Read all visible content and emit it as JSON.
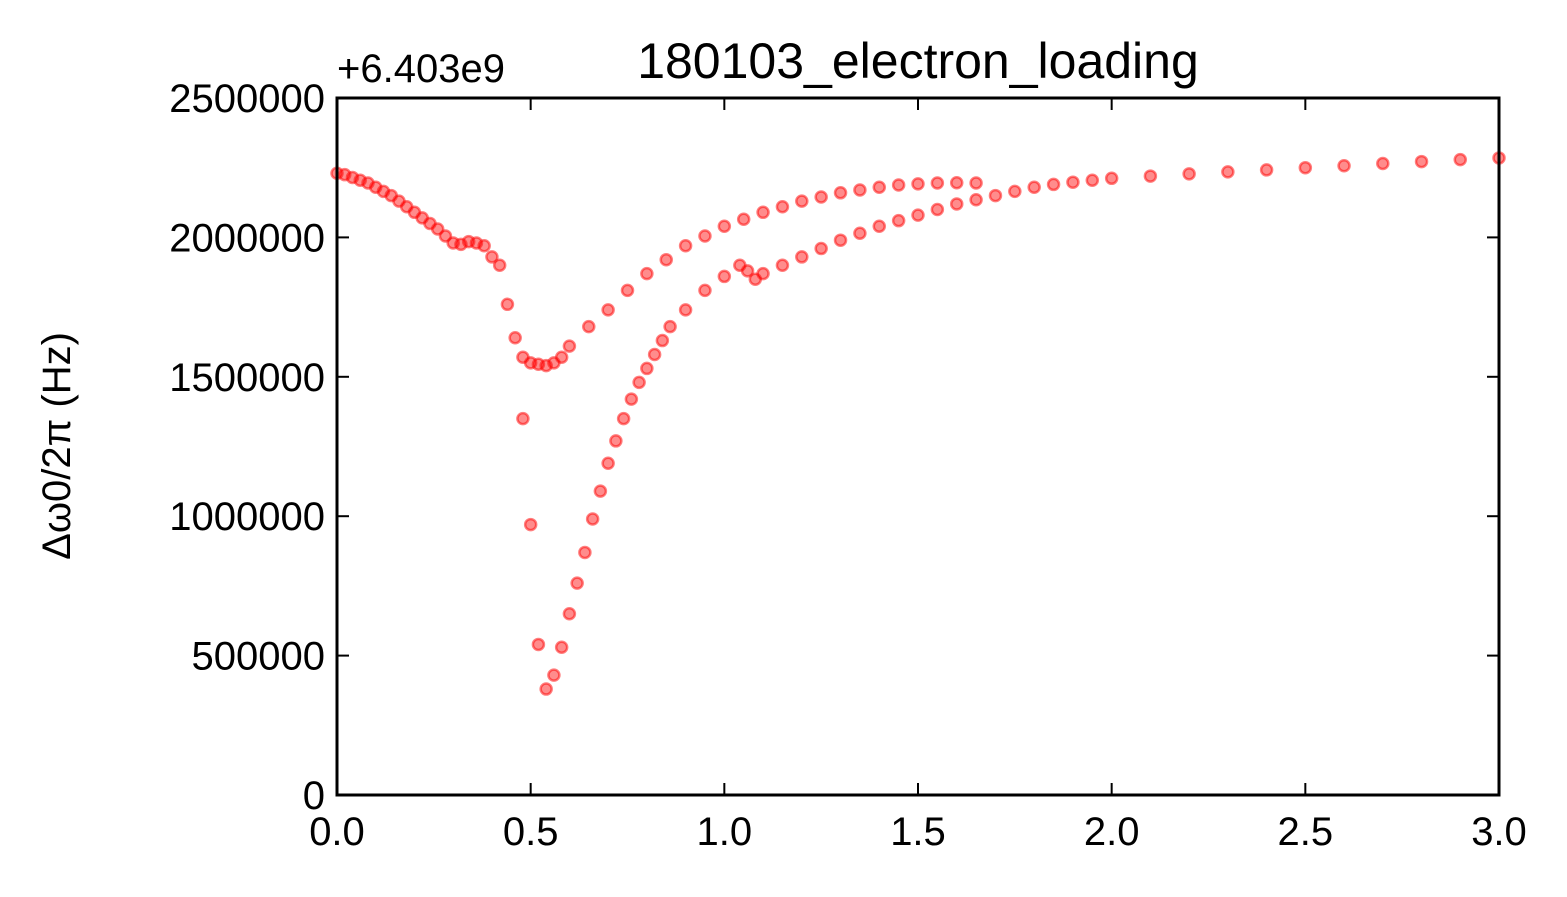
{
  "chart_data": {
    "type": "scatter",
    "title": "180103_electron_loading",
    "y_offset_label": "+6.403e9",
    "ylabel": "Δω0/2π (Hz)",
    "color": "#ff0000",
    "xlim": [
      0,
      3
    ],
    "ylim": [
      0,
      2500000
    ],
    "xticks": [
      {
        "value": 0,
        "label": "0.0"
      },
      0.5,
      {
        "value": 1,
        "label": "1.0"
      },
      1.5,
      {
        "value": 2,
        "label": "2.0"
      },
      2.5,
      {
        "value": 3,
        "label": "3.0"
      }
    ],
    "yticks": [
      0,
      500000,
      1000000,
      1500000,
      2000000,
      2500000
    ],
    "x": [
      0,
      0.02,
      0.04,
      0.06,
      0.08,
      0.1,
      0.12,
      0.14,
      0.16,
      0.18,
      0.2,
      0.22,
      0.24,
      0.26,
      0.28,
      0.3,
      0.32,
      0.34,
      0.36,
      0.38,
      0.4,
      0.42,
      0.44,
      0.46,
      0.48,
      0.5,
      0.52,
      0.54,
      0.56,
      0.58,
      0.6,
      0.65,
      0.7,
      0.75,
      0.8,
      0.85,
      0.9,
      0.95,
      1.0,
      1.05,
      1.1,
      1.15,
      1.2,
      1.25,
      1.3,
      1.35,
      1.4,
      1.45,
      1.5,
      1.55,
      1.6,
      1.65,
      0.48,
      0.5,
      0.52,
      0.54,
      0.56,
      0.58,
      0.6,
      0.62,
      0.64,
      0.66,
      0.68,
      0.7,
      0.72,
      0.74,
      0.76,
      0.78,
      0.8,
      0.82,
      0.84,
      0.86,
      0.9,
      0.95,
      1.0,
      1.04,
      1.06,
      1.08,
      1.1,
      1.15,
      1.2,
      1.25,
      1.3,
      1.35,
      1.4,
      1.45,
      1.5,
      1.55,
      1.6,
      1.65,
      1.7,
      1.75,
      1.8,
      1.85,
      1.9,
      1.95,
      2.0,
      2.1,
      2.2,
      2.3,
      2.4,
      2.5,
      2.6,
      2.7,
      2.8,
      2.9,
      3.0
    ],
    "values": [
      2230000,
      2225000,
      2215000,
      2205000,
      2195000,
      2180000,
      2165000,
      2150000,
      2130000,
      2110000,
      2090000,
      2070000,
      2050000,
      2030000,
      2005000,
      1980000,
      1975000,
      1985000,
      1980000,
      1970000,
      1930000,
      1900000,
      1760000,
      1640000,
      1570000,
      1550000,
      1545000,
      1540000,
      1550000,
      1570000,
      1610000,
      1680000,
      1740000,
      1810000,
      1870000,
      1920000,
      1970000,
      2005000,
      2040000,
      2065000,
      2090000,
      2110000,
      2130000,
      2145000,
      2160000,
      2170000,
      2180000,
      2188000,
      2192000,
      2195000,
      2196000,
      2195000,
      1350000,
      970000,
      540000,
      380000,
      430000,
      530000,
      650000,
      760000,
      870000,
      990000,
      1090000,
      1190000,
      1270000,
      1350000,
      1420000,
      1480000,
      1530000,
      1580000,
      1630000,
      1680000,
      1740000,
      1810000,
      1860000,
      1900000,
      1880000,
      1850000,
      1870000,
      1900000,
      1930000,
      1960000,
      1990000,
      2015000,
      2040000,
      2060000,
      2080000,
      2100000,
      2120000,
      2135000,
      2150000,
      2165000,
      2180000,
      2190000,
      2198000,
      2205000,
      2212000,
      2220000,
      2228000,
      2235000,
      2242000,
      2250000,
      2257000,
      2265000,
      2272000,
      2279000,
      2285000
    ]
  }
}
